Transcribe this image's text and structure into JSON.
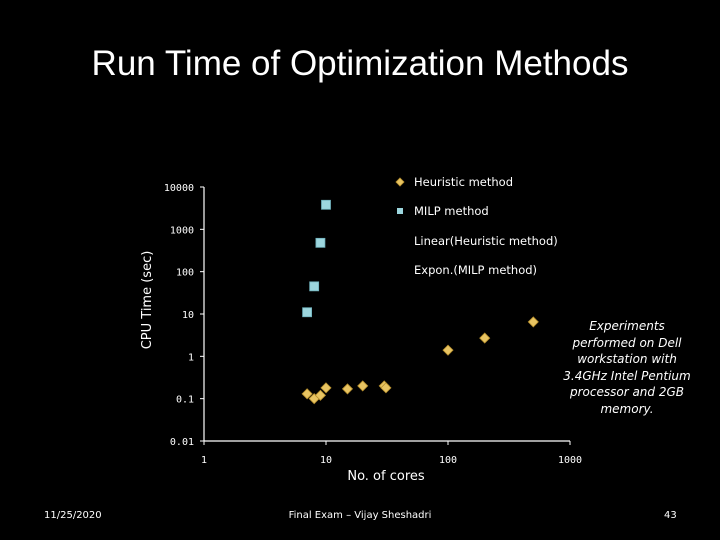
{
  "slide": {
    "title": "Run Time of Optimization Methods",
    "note": "Experiments performed on Dell workstation with 3.4GHz Intel Pentium processor and 2GB memory.",
    "footer_date": "11/25/2020",
    "footer_center": "Final Exam – Vijay Sheshadri",
    "page_number": "43"
  },
  "chart_data": {
    "type": "scatter",
    "xscale": "log",
    "yscale": "log",
    "xlabel": "No. of cores",
    "ylabel": "CPU Time (sec)",
    "xlim": [
      1,
      1000
    ],
    "ylim": [
      0.01,
      10000
    ],
    "x_ticks": [
      "1",
      "10",
      "100",
      "1000"
    ],
    "y_ticks": [
      "0.01",
      "0.1",
      "1",
      "10",
      "100",
      "1000",
      "10000"
    ],
    "series": [
      {
        "name": "Heuristic method",
        "marker": "diamond",
        "color": "#E8C462",
        "points": [
          {
            "x": 7,
            "y": 0.13
          },
          {
            "x": 8,
            "y": 0.1
          },
          {
            "x": 9,
            "y": 0.12
          },
          {
            "x": 10,
            "y": 0.18
          },
          {
            "x": 15,
            "y": 0.17
          },
          {
            "x": 20,
            "y": 0.2
          },
          {
            "x": 30,
            "y": 0.2
          },
          {
            "x": 31,
            "y": 0.18
          },
          {
            "x": 100,
            "y": 1.4
          },
          {
            "x": 200,
            "y": 2.7
          },
          {
            "x": 500,
            "y": 6.5
          }
        ]
      },
      {
        "name": "MILP method",
        "marker": "square",
        "color": "#9CD6DE",
        "points": [
          {
            "x": 7,
            "y": 11
          },
          {
            "x": 8,
            "y": 45
          },
          {
            "x": 9,
            "y": 480
          },
          {
            "x": 10,
            "y": 3800
          }
        ]
      }
    ],
    "trendlines": [
      {
        "name": "Linear(Heuristic method)",
        "style": "dashed",
        "color": "#000000"
      },
      {
        "name": "Expon.(MILP method)",
        "style": "solid",
        "color": "#000000"
      }
    ]
  }
}
